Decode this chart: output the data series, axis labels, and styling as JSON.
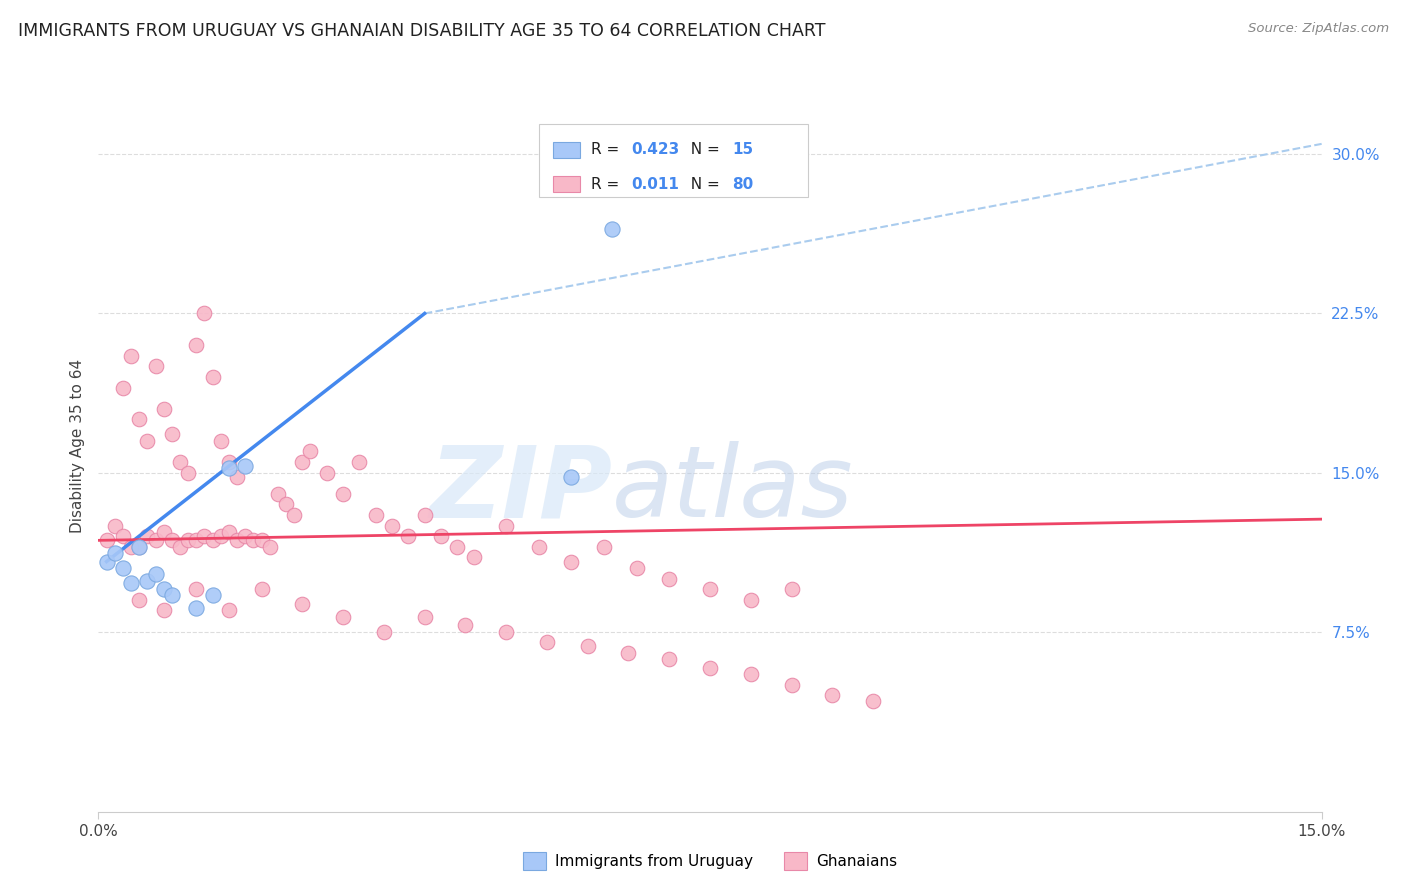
{
  "title": "IMMIGRANTS FROM URUGUAY VS GHANAIAN DISABILITY AGE 35 TO 64 CORRELATION CHART",
  "source": "Source: ZipAtlas.com",
  "ylabel_label": "Disability Age 35 to 64",
  "xlim": [
    0.0,
    0.15
  ],
  "ylim": [
    -0.01,
    0.335
  ],
  "blue_scatter_x": [
    0.001,
    0.002,
    0.003,
    0.004,
    0.005,
    0.006,
    0.007,
    0.008,
    0.009,
    0.012,
    0.014,
    0.016,
    0.018,
    0.058,
    0.063
  ],
  "blue_scatter_y": [
    0.108,
    0.112,
    0.105,
    0.098,
    0.115,
    0.099,
    0.102,
    0.095,
    0.092,
    0.086,
    0.092,
    0.152,
    0.153,
    0.148,
    0.265
  ],
  "pink_scatter_x": [
    0.001,
    0.002,
    0.003,
    0.003,
    0.004,
    0.004,
    0.005,
    0.005,
    0.006,
    0.006,
    0.007,
    0.007,
    0.008,
    0.008,
    0.009,
    0.009,
    0.01,
    0.01,
    0.011,
    0.011,
    0.012,
    0.012,
    0.013,
    0.013,
    0.014,
    0.014,
    0.015,
    0.015,
    0.016,
    0.016,
    0.017,
    0.017,
    0.018,
    0.019,
    0.02,
    0.021,
    0.022,
    0.023,
    0.024,
    0.025,
    0.026,
    0.028,
    0.03,
    0.032,
    0.034,
    0.036,
    0.038,
    0.04,
    0.042,
    0.044,
    0.046,
    0.05,
    0.054,
    0.058,
    0.062,
    0.066,
    0.07,
    0.075,
    0.08,
    0.085,
    0.005,
    0.008,
    0.012,
    0.016,
    0.02,
    0.025,
    0.03,
    0.035,
    0.04,
    0.045,
    0.05,
    0.055,
    0.06,
    0.065,
    0.07,
    0.075,
    0.08,
    0.085,
    0.09,
    0.095
  ],
  "pink_scatter_y": [
    0.118,
    0.125,
    0.12,
    0.19,
    0.115,
    0.205,
    0.115,
    0.175,
    0.12,
    0.165,
    0.118,
    0.2,
    0.122,
    0.18,
    0.118,
    0.168,
    0.115,
    0.155,
    0.118,
    0.15,
    0.118,
    0.21,
    0.12,
    0.225,
    0.118,
    0.195,
    0.12,
    0.165,
    0.122,
    0.155,
    0.118,
    0.148,
    0.12,
    0.118,
    0.118,
    0.115,
    0.14,
    0.135,
    0.13,
    0.155,
    0.16,
    0.15,
    0.14,
    0.155,
    0.13,
    0.125,
    0.12,
    0.13,
    0.12,
    0.115,
    0.11,
    0.125,
    0.115,
    0.108,
    0.115,
    0.105,
    0.1,
    0.095,
    0.09,
    0.095,
    0.09,
    0.085,
    0.095,
    0.085,
    0.095,
    0.088,
    0.082,
    0.075,
    0.082,
    0.078,
    0.075,
    0.07,
    0.068,
    0.065,
    0.062,
    0.058,
    0.055,
    0.05,
    0.045,
    0.042
  ],
  "blue_line_x": [
    0.001,
    0.04
  ],
  "blue_line_y": [
    0.108,
    0.225
  ],
  "blue_dashed_line_x": [
    0.04,
    0.15
  ],
  "blue_dashed_line_y": [
    0.225,
    0.305
  ],
  "pink_line_x": [
    0.0,
    0.15
  ],
  "pink_line_y": [
    0.118,
    0.128
  ],
  "watermark_zip": "ZIP",
  "watermark_atlas": "atlas",
  "background_color": "#ffffff",
  "grid_color": "#dddddd",
  "scatter_blue_color": "#a8c8f8",
  "scatter_blue_edge": "#7aa8e0",
  "scatter_pink_color": "#f8b8c8",
  "scatter_pink_edge": "#e888a8",
  "trendline_blue_color": "#4488ee",
  "trendline_pink_color": "#ee4466",
  "dashed_line_color": "#aaccee",
  "ytick_color": "#4488ee",
  "legend_blue_color": "#a8c8f8",
  "legend_pink_color": "#f8b8c8",
  "R_blue": "0.423",
  "N_blue": "15",
  "R_pink": "0.011",
  "N_pink": "80",
  "label_blue": "Immigrants from Uruguay",
  "label_pink": "Ghanaians"
}
